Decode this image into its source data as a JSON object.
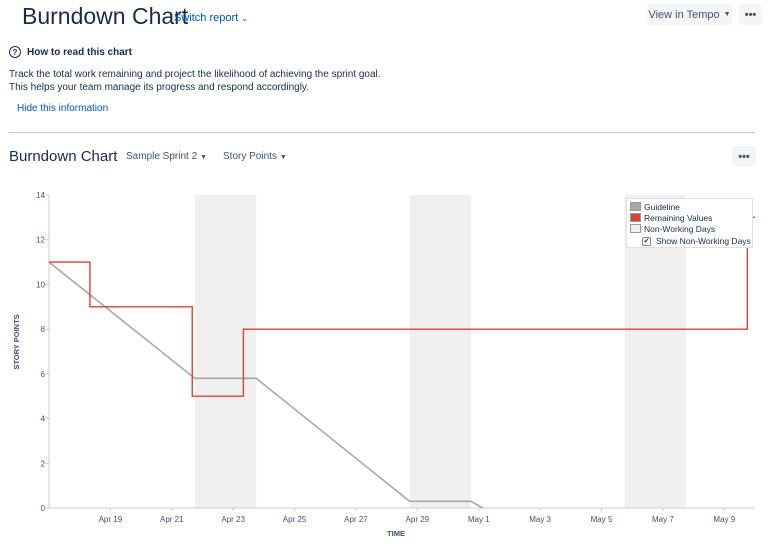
{
  "header": {
    "title": "Burndown Chart",
    "switch_report": "Switch report",
    "view_in_tempo": "View in Tempo",
    "more": "•••"
  },
  "help": {
    "title": "How to read this chart",
    "icon": "?",
    "line1": "Track the total work remaining and project the likelihood of achieving the sprint goal.",
    "line2": "This helps your team manage its progress and respond accordingly.",
    "hide": "Hide this information"
  },
  "chart_section": {
    "title": "Burndown Chart",
    "sprint": "Sample Sprint 2",
    "unit": "Story Points",
    "more": "•••"
  },
  "colors": {
    "guideline": "#a8a8a8",
    "remaining": "#e0402f",
    "non_working": "#f0f0f0",
    "axis": "#cccccc",
    "text": "#172b4d"
  },
  "legend": {
    "guideline": "Guideline",
    "remaining": "Remaining Values",
    "non_working": "Non-Working Days",
    "show_non_working": "Show Non-Working Days",
    "show_non_working_checked": true
  },
  "chart_data": {
    "type": "line",
    "xlabel": "TIME",
    "ylabel": "STORY POINTS",
    "ylim": [
      0,
      14
    ],
    "yticks": [
      0,
      2,
      4,
      6,
      8,
      10,
      12,
      14
    ],
    "x_start": "2018-04-17",
    "x_end": "2018-05-10",
    "xticks": [
      {
        "date": "2018-04-19",
        "label": "Apr 19"
      },
      {
        "date": "2018-04-21",
        "label": "Apr 21"
      },
      {
        "date": "2018-04-23",
        "label": "Apr 23"
      },
      {
        "date": "2018-04-25",
        "label": "Apr 25"
      },
      {
        "date": "2018-04-27",
        "label": "Apr 27"
      },
      {
        "date": "2018-04-29",
        "label": "Apr 29"
      },
      {
        "date": "2018-05-01",
        "label": "May 1"
      },
      {
        "date": "2018-05-03",
        "label": "May 3"
      },
      {
        "date": "2018-05-05",
        "label": "May 5"
      },
      {
        "date": "2018-05-07",
        "label": "May 7"
      },
      {
        "date": "2018-05-09",
        "label": "May 9"
      }
    ],
    "non_working_days": [
      {
        "start": "2018-04-21 18:00",
        "end": "2018-04-23 18:00"
      },
      {
        "start": "2018-04-28 18:00",
        "end": "2018-04-30 18:00"
      },
      {
        "start": "2018-05-05 18:00",
        "end": "2018-05-07 18:00"
      }
    ],
    "series": [
      {
        "name": "Guideline",
        "points": [
          {
            "x": "2018-04-17 00:00",
            "y": 11
          },
          {
            "x": "2018-04-21 18:00",
            "y": 5.8
          },
          {
            "x": "2018-04-23 18:00",
            "y": 5.8
          },
          {
            "x": "2018-04-28 18:00",
            "y": 0.3
          },
          {
            "x": "2018-04-30 18:00",
            "y": 0.3
          },
          {
            "x": "2018-05-01 03:00",
            "y": 0
          }
        ]
      },
      {
        "name": "Remaining Values",
        "step": true,
        "points": [
          {
            "x": "2018-04-17 00:00",
            "y": 11
          },
          {
            "x": "2018-04-18 08:00",
            "y": 9
          },
          {
            "x": "2018-04-21 16:00",
            "y": 5
          },
          {
            "x": "2018-04-23 08:00",
            "y": 8
          },
          {
            "x": "2018-05-09 18:00",
            "y": 13
          }
        ]
      }
    ]
  }
}
